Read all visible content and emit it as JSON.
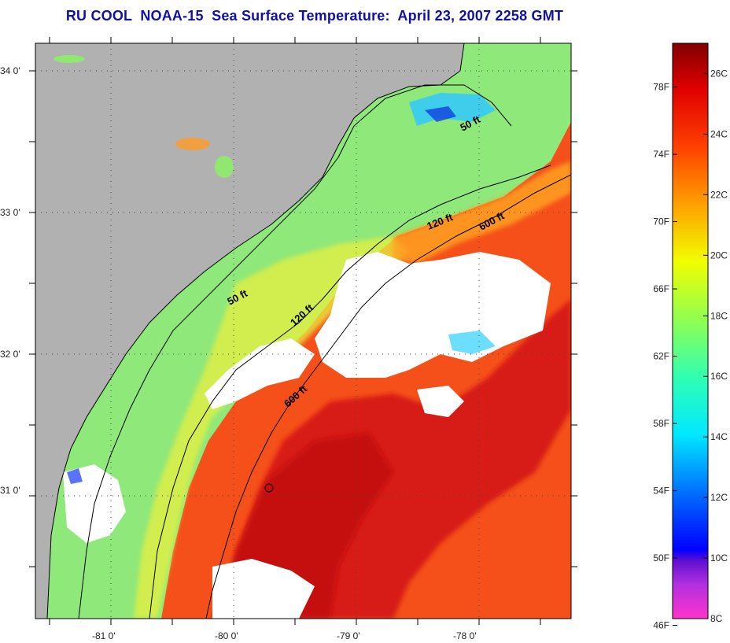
{
  "title": "RU COOL  NOAA-15  Sea Surface Temperature:  April 23, 2007 2258 GMT",
  "map": {
    "lat_labels": [
      {
        "text": "34 0'",
        "lat": 34
      },
      {
        "text": "33 0'",
        "lat": 33
      },
      {
        "text": "32 0'",
        "lat": 32
      },
      {
        "text": "31 0'",
        "lat": 31
      }
    ],
    "lon_labels": [
      {
        "text": "-81 0'",
        "lon": -81
      },
      {
        "text": "-80 0'",
        "lon": -80
      },
      {
        "text": "-79 0'",
        "lon": -79
      },
      {
        "text": "-78 0'",
        "lon": -78
      }
    ],
    "contour_labels": [
      "50 ft",
      "120 ft",
      "600 ft",
      "50 ft",
      "120 ft",
      "600 ft"
    ],
    "colors": {
      "land": "#b1b1b1",
      "cloud": "#ffffff",
      "shelf_water": "#8fe87a",
      "warm_water": "#f5501a",
      "gulf_stream": "#d41414"
    }
  },
  "colorbar": {
    "f_labels": [
      "78F",
      "74F",
      "70F",
      "66F",
      "62F",
      "58F",
      "54F",
      "50F",
      "46F"
    ],
    "c_labels": [
      "26C",
      "24C",
      "22C",
      "20C",
      "18C",
      "16C",
      "14C",
      "12C",
      "10C",
      "8C"
    ],
    "f_values": [
      78,
      74,
      70,
      66,
      62,
      58,
      54,
      50,
      46
    ],
    "c_values": [
      26,
      24,
      22,
      20,
      18,
      16,
      14,
      12,
      10,
      8
    ],
    "range_c": [
      8,
      27
    ]
  }
}
